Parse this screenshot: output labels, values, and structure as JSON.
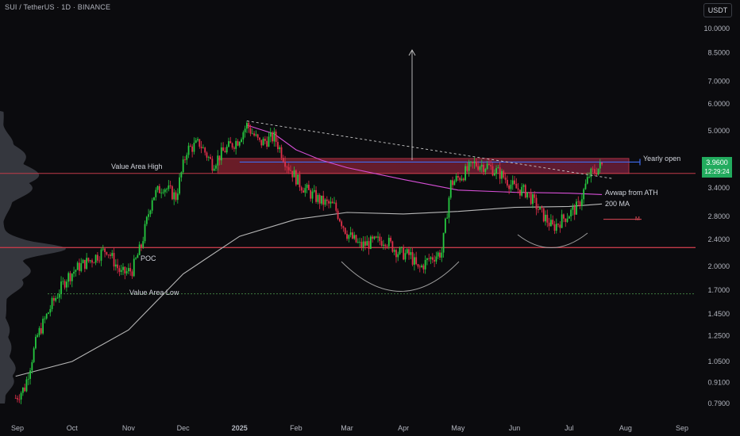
{
  "header": {
    "title": "SUI / TetherUS · 1D · BINANCE",
    "currency_button": "USDT"
  },
  "chart_data": {
    "type": "candlestick",
    "symbol": "SUI / TetherUS",
    "interval": "1D",
    "exchange": "BINANCE",
    "scale": "log",
    "ylim": [
      0.75,
      11.0
    ],
    "y_ticks": [
      "10.0000",
      "8.5000",
      "7.0000",
      "6.0000",
      "5.0000",
      "3.4000",
      "2.8000",
      "2.4000",
      "2.0000",
      "1.7000",
      "1.4500",
      "1.2500",
      "1.0500",
      "0.9100",
      "0.7900"
    ],
    "x_ticks": [
      "Sep",
      "Oct",
      "Nov",
      "Dec",
      "2025",
      "Feb",
      "Mar",
      "Apr",
      "May",
      "Jun",
      "Jul",
      "Aug",
      "Sep"
    ],
    "last_price": "3.9600",
    "countdown": "12:29:24",
    "close_series": {
      "dates": [
        "2024-08-31",
        "2024-09-05",
        "2024-09-12",
        "2024-09-20",
        "2024-09-28",
        "2024-10-05",
        "2024-10-12",
        "2024-10-20",
        "2024-10-28",
        "2024-11-03",
        "2024-11-08",
        "2024-11-14",
        "2024-11-20",
        "2024-11-27",
        "2024-12-03",
        "2024-12-10",
        "2024-12-17",
        "2024-12-24",
        "2024-12-31",
        "2025-01-05",
        "2025-01-12",
        "2025-01-20",
        "2025-01-27",
        "2025-02-03",
        "2025-02-08",
        "2025-02-15",
        "2025-02-22",
        "2025-03-01",
        "2025-03-08",
        "2025-03-15",
        "2025-03-22",
        "2025-03-29",
        "2025-04-05",
        "2025-04-09",
        "2025-04-15",
        "2025-04-22",
        "2025-04-27",
        "2025-05-03",
        "2025-05-10",
        "2025-05-17",
        "2025-05-24",
        "2025-06-01",
        "2025-06-08",
        "2025-06-15",
        "2025-06-22",
        "2025-06-29",
        "2025-07-06",
        "2025-07-12",
        "2025-07-19"
      ],
      "values": [
        0.82,
        0.88,
        1.25,
        1.55,
        1.85,
        2.0,
        2.1,
        2.25,
        1.9,
        1.95,
        2.3,
        3.2,
        3.45,
        3.2,
        4.4,
        4.6,
        4.0,
        4.4,
        4.7,
        5.2,
        4.6,
        4.8,
        4.0,
        3.5,
        3.3,
        3.1,
        3.0,
        2.5,
        2.3,
        2.35,
        2.4,
        2.2,
        2.15,
        1.95,
        2.1,
        2.2,
        3.5,
        3.7,
        4.0,
        3.95,
        3.75,
        3.4,
        3.3,
        2.9,
        2.6,
        2.8,
        3.0,
        3.7,
        3.96
      ]
    },
    "indicators": [
      {
        "name": "200 MA",
        "color": "#b8b8b8",
        "dates": [
          "2024-08-31",
          "2024-10-01",
          "2024-11-01",
          "2024-12-01",
          "2025-01-01",
          "2025-02-01",
          "2025-03-01",
          "2025-04-01",
          "2025-05-01",
          "2025-06-01",
          "2025-07-01",
          "2025-07-19"
        ],
        "values": [
          0.95,
          1.05,
          1.3,
          1.9,
          2.45,
          2.75,
          2.88,
          2.85,
          2.9,
          2.98,
          3.0,
          3.05
        ]
      },
      {
        "name": "Avwap from ATH",
        "color": "#d64fd6",
        "dates": [
          "2025-01-05",
          "2025-01-20",
          "2025-02-01",
          "2025-02-15",
          "2025-03-01",
          "2025-04-01",
          "2025-05-01",
          "2025-06-01",
          "2025-07-01",
          "2025-07-19"
        ],
        "values": [
          5.2,
          4.9,
          4.4,
          4.1,
          3.9,
          3.6,
          3.35,
          3.3,
          3.28,
          3.25
        ]
      }
    ],
    "levels": [
      {
        "name": "Value Area High",
        "value": 3.75,
        "color": "#c23b48"
      },
      {
        "name": "POC",
        "value": 2.27,
        "color": "#c23b48"
      },
      {
        "name": "Value Area Low",
        "value": 1.66,
        "color": "#3f7a3f"
      },
      {
        "name": "Yearly open",
        "value": 4.05,
        "color": "#3d6cf0"
      }
    ],
    "resistance_zone": {
      "from": 3.75,
      "to": 4.15
    },
    "trendline": {
      "from": [
        "2025-01-05",
        5.35
      ],
      "to": [
        "2025-07-25",
        3.62
      ]
    },
    "labels": {
      "vah": "Value Area High",
      "poc": "POC",
      "val": "Value Area Low",
      "yearly_open": "Yearly open",
      "avwap": "Avwap from ATH",
      "ma200": "200 MA",
      "m": "M"
    }
  }
}
